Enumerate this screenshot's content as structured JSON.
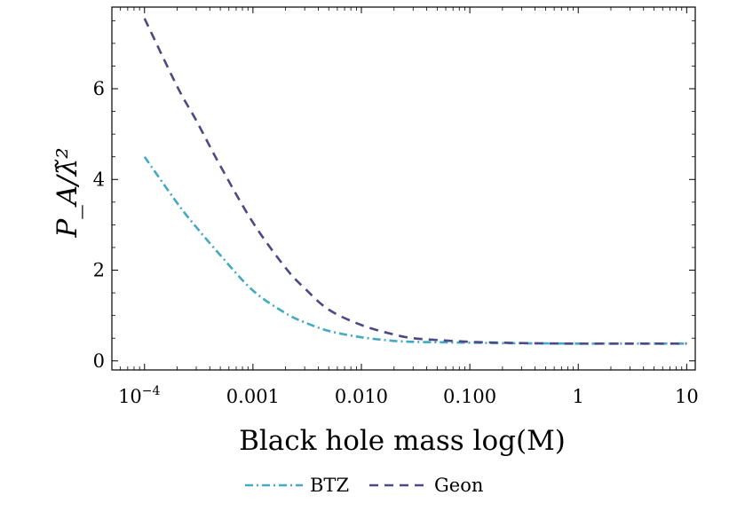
{
  "chart_data": {
    "type": "line",
    "xlabel": "Black hole mass   log(M)",
    "ylabel": "P_A/λ̃²",
    "x_scale": "log",
    "xlim": [
      5e-05,
      12
    ],
    "ylim": [
      -0.2,
      7.8
    ],
    "x_ticks": [
      {
        "value": 0.0001,
        "label": "10",
        "sup": "−4"
      },
      {
        "value": 0.001,
        "label": "0.001",
        "sup": ""
      },
      {
        "value": 0.01,
        "label": "0.010",
        "sup": ""
      },
      {
        "value": 0.1,
        "label": "0.100",
        "sup": ""
      },
      {
        "value": 1,
        "label": "1",
        "sup": ""
      },
      {
        "value": 10,
        "label": "10",
        "sup": ""
      }
    ],
    "y_ticks": [
      {
        "value": 0,
        "label": "0"
      },
      {
        "value": 2,
        "label": "2"
      },
      {
        "value": 4,
        "label": "4"
      },
      {
        "value": 6,
        "label": "6"
      }
    ],
    "grid": false,
    "legend_position": "bottom-center",
    "series": [
      {
        "name": "BTZ",
        "color": "#44a9c2",
        "dash": "dash-dot",
        "x": [
          0.0001,
          0.0002,
          0.0003,
          0.0005,
          0.001,
          0.002,
          0.003,
          0.005,
          0.01,
          0.02,
          0.03,
          0.05,
          0.1,
          0.2,
          0.5,
          1,
          2,
          5,
          10
        ],
        "y": [
          4.5,
          3.48,
          2.95,
          2.33,
          1.55,
          1.05,
          0.85,
          0.66,
          0.52,
          0.44,
          0.42,
          0.41,
          0.4,
          0.39,
          0.385,
          0.38,
          0.38,
          0.38,
          0.38
        ]
      },
      {
        "name": "Geon",
        "color": "#4c4a86",
        "dash": "dashed",
        "x": [
          0.0001,
          0.0002,
          0.0003,
          0.0005,
          0.001,
          0.002,
          0.003,
          0.005,
          0.01,
          0.02,
          0.03,
          0.05,
          0.1,
          0.2,
          0.5,
          1,
          2,
          5,
          10
        ],
        "y": [
          7.55,
          6.05,
          5.3,
          4.3,
          3.05,
          2.05,
          1.6,
          1.13,
          0.79,
          0.58,
          0.5,
          0.46,
          0.42,
          0.4,
          0.385,
          0.38,
          0.38,
          0.38,
          0.38
        ]
      }
    ]
  }
}
